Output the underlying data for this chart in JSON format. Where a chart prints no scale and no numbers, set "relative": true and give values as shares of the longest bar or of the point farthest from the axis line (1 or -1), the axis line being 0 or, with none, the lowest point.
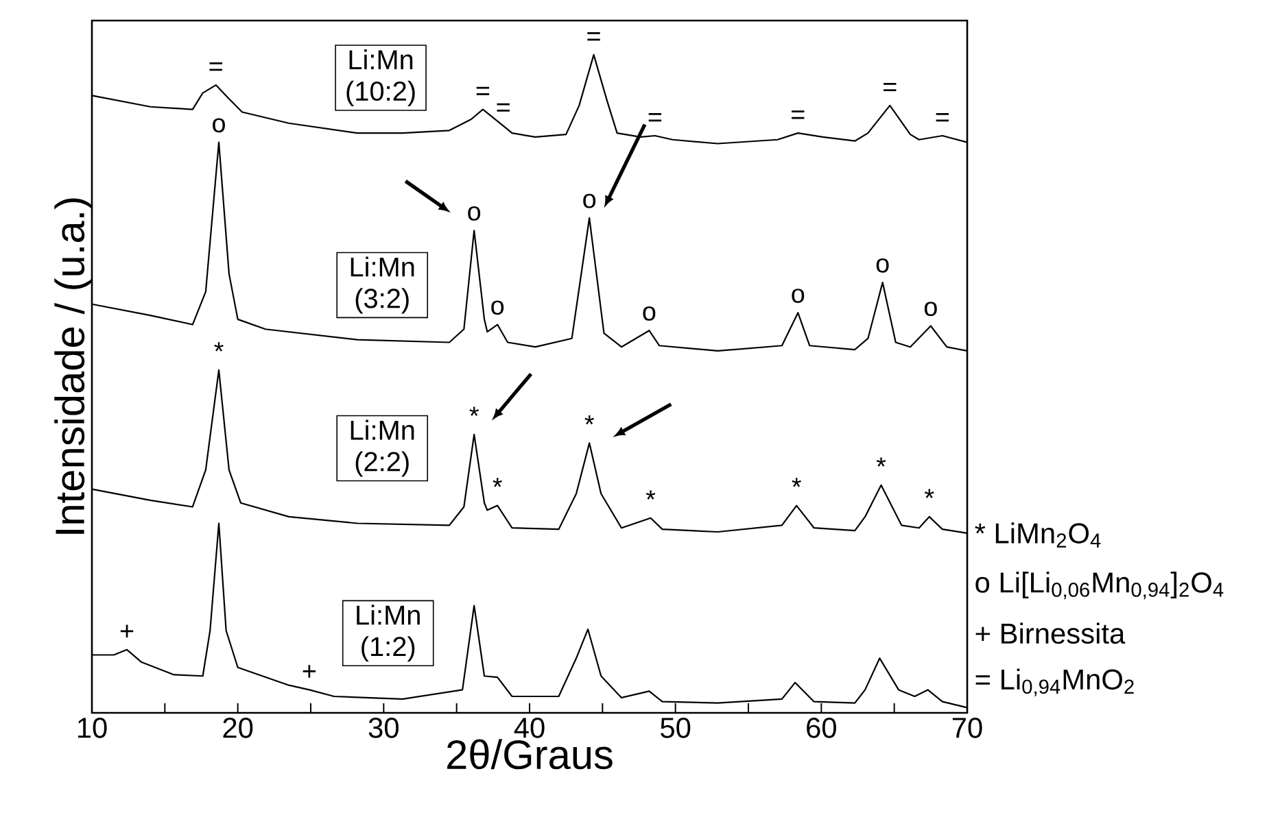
{
  "chart_data": {
    "type": "line",
    "relative": true,
    "xlabel": "2θ/Graus",
    "ylabel": "Intensidade / (u.a.)",
    "xlim": [
      10,
      70
    ],
    "xticks": [
      10,
      {
        "value": 15,
        "label": null
      },
      20,
      {
        "value": 25,
        "label": null
      },
      30,
      {
        "value": 35,
        "label": null
      },
      40,
      {
        "value": 45,
        "label": null
      },
      50,
      {
        "value": 55,
        "label": null
      },
      60,
      {
        "value": 65,
        "label": null
      },
      70
    ],
    "tick_labels": "x",
    "grid": false,
    "marker": "none",
    "line_style": "solid",
    "series": [
      {
        "name": "Li:Mn (10:2)",
        "color": "#000000",
        "x": [
          10,
          14.0,
          16.9,
          17.6,
          18.5,
          19.4,
          20.3,
          23.5,
          28.2,
          31.3,
          34.5,
          36.0,
          36.8,
          38.2,
          38.8,
          40.4,
          42.5,
          43.4,
          44.4,
          45.3,
          46.0,
          47.6,
          48.6,
          49.8,
          52.9,
          57.0,
          58.4,
          60.1,
          62.3,
          63.2,
          64.7,
          66.1,
          66.7,
          68.3,
          70
        ],
        "values": [
          0.938,
          0.921,
          0.917,
          0.942,
          0.954,
          0.933,
          0.913,
          0.896,
          0.881,
          0.881,
          0.885,
          0.902,
          0.917,
          0.892,
          0.881,
          0.875,
          0.879,
          0.923,
          1,
          0.931,
          0.881,
          0.875,
          0.877,
          0.871,
          0.865,
          0.871,
          0.881,
          0.875,
          0.869,
          0.881,
          0.923,
          0.879,
          0.871,
          0.877,
          0.867
        ]
      },
      {
        "name": "Li:Mn (3:2)",
        "color": "#000000",
        "x": [
          10,
          14.0,
          16.9,
          17.8,
          18.7,
          19.4,
          20.0,
          21.9,
          28.2,
          34.5,
          35.5,
          36.2,
          36.9,
          37.1,
          37.8,
          38.5,
          40.4,
          42.9,
          44.1,
          45.1,
          46.3,
          48.2,
          48.9,
          52.9,
          57.3,
          58.4,
          59.2,
          62.3,
          63.2,
          64.2,
          65.1,
          66.1,
          67.5,
          68.6,
          70
        ],
        "values": [
          0.621,
          0.604,
          0.59,
          0.64,
          0.867,
          0.667,
          0.598,
          0.583,
          0.567,
          0.563,
          0.583,
          0.733,
          0.598,
          0.579,
          0.59,
          0.563,
          0.556,
          0.569,
          0.752,
          0.577,
          0.556,
          0.581,
          0.558,
          0.55,
          0.558,
          0.608,
          0.558,
          0.552,
          0.569,
          0.654,
          0.563,
          0.556,
          0.588,
          0.556,
          0.55
        ]
      },
      {
        "name": "Li:Mn (2:2)",
        "color": "#000000",
        "x": [
          10,
          14.0,
          16.9,
          17.8,
          18.7,
          19.4,
          20.2,
          23.5,
          28.2,
          34.5,
          35.5,
          36.2,
          36.9,
          37.1,
          37.8,
          38.8,
          42.0,
          43.2,
          44.1,
          44.9,
          46.3,
          48.3,
          49.1,
          52.9,
          57.3,
          58.3,
          59.5,
          62.3,
          63.0,
          64.1,
          65.5,
          66.7,
          67.4,
          68.3,
          70
        ],
        "values": [
          0.34,
          0.323,
          0.313,
          0.369,
          0.521,
          0.369,
          0.319,
          0.298,
          0.288,
          0.285,
          0.313,
          0.423,
          0.319,
          0.308,
          0.315,
          0.281,
          0.279,
          0.333,
          0.41,
          0.333,
          0.281,
          0.296,
          0.279,
          0.275,
          0.285,
          0.315,
          0.281,
          0.277,
          0.298,
          0.346,
          0.285,
          0.281,
          0.298,
          0.279,
          0.273
        ]
      },
      {
        "name": "Li:Mn (1:2)",
        "color": "#000000",
        "x": [
          10,
          11.5,
          12.4,
          13.4,
          15.6,
          17.6,
          18.1,
          18.7,
          19.2,
          20.0,
          23.5,
          24.9,
          26.6,
          31.3,
          35.4,
          36.2,
          36.9,
          37.8,
          38.8,
          42.0,
          43.2,
          44.0,
          44.9,
          46.3,
          48.2,
          49.1,
          52.9,
          57.3,
          58.2,
          59.5,
          62.3,
          63.0,
          64.0,
          65.3,
          66.4,
          67.3,
          68.3,
          70
        ],
        "values": [
          0.088,
          0.088,
          0.096,
          0.077,
          0.058,
          0.056,
          0.125,
          0.288,
          0.125,
          0.069,
          0.042,
          0.035,
          0.025,
          0.021,
          0.035,
          0.163,
          0.056,
          0.054,
          0.025,
          0.025,
          0.083,
          0.127,
          0.056,
          0.023,
          0.033,
          0.017,
          0.015,
          0.021,
          0.046,
          0.017,
          0.015,
          0.035,
          0.083,
          0.035,
          0.025,
          0.035,
          0.017,
          0.008
        ]
      }
    ],
    "annotations": [
      {
        "text": "=",
        "x": 18.5,
        "y": 0.954
      },
      {
        "text": "=",
        "x": 36.8,
        "y": 0.917
      },
      {
        "text": "=",
        "x": 38.2,
        "y": 0.892
      },
      {
        "text": "=",
        "x": 44.4,
        "y": 1
      },
      {
        "text": "=",
        "x": 48.6,
        "y": 0.877
      },
      {
        "text": "=",
        "x": 58.4,
        "y": 0.881
      },
      {
        "text": "=",
        "x": 64.7,
        "y": 0.923
      },
      {
        "text": "=",
        "x": 68.3,
        "y": 0.877
      },
      {
        "text": "o",
        "x": 18.7,
        "y": 0.867
      },
      {
        "text": "o",
        "x": 36.2,
        "y": 0.733
      },
      {
        "text": "o",
        "x": 37.8,
        "y": 0.59
      },
      {
        "text": "o",
        "x": 44.1,
        "y": 0.752
      },
      {
        "text": "o",
        "x": 48.2,
        "y": 0.581
      },
      {
        "text": "o",
        "x": 58.4,
        "y": 0.608
      },
      {
        "text": "o",
        "x": 64.2,
        "y": 0.654
      },
      {
        "text": "o",
        "x": 67.5,
        "y": 0.588
      },
      {
        "text": "*",
        "x": 18.7,
        "y": 0.521
      },
      {
        "text": "*",
        "x": 36.2,
        "y": 0.423
      },
      {
        "text": "*",
        "x": 37.8,
        "y": 0.315
      },
      {
        "text": "*",
        "x": 44.1,
        "y": 0.41
      },
      {
        "text": "*",
        "x": 48.3,
        "y": 0.296
      },
      {
        "text": "*",
        "x": 58.3,
        "y": 0.315
      },
      {
        "text": "*",
        "x": 64.1,
        "y": 0.346
      },
      {
        "text": "*",
        "x": 67.4,
        "y": 0.298
      },
      {
        "text": "+",
        "x": 12.4,
        "y": 0.096
      },
      {
        "text": "+",
        "x": 24.9,
        "y": 0.035
      },
      "* LiMn$_{2}$O$_{4}$",
      "o Li[Li$_{0,06}$Mn$_{0,94}$]$_{2}$O$_{4}$",
      "+ Birnessita",
      "= Li$_{0,94}$MnO$_{2}$"
    ]
  }
}
